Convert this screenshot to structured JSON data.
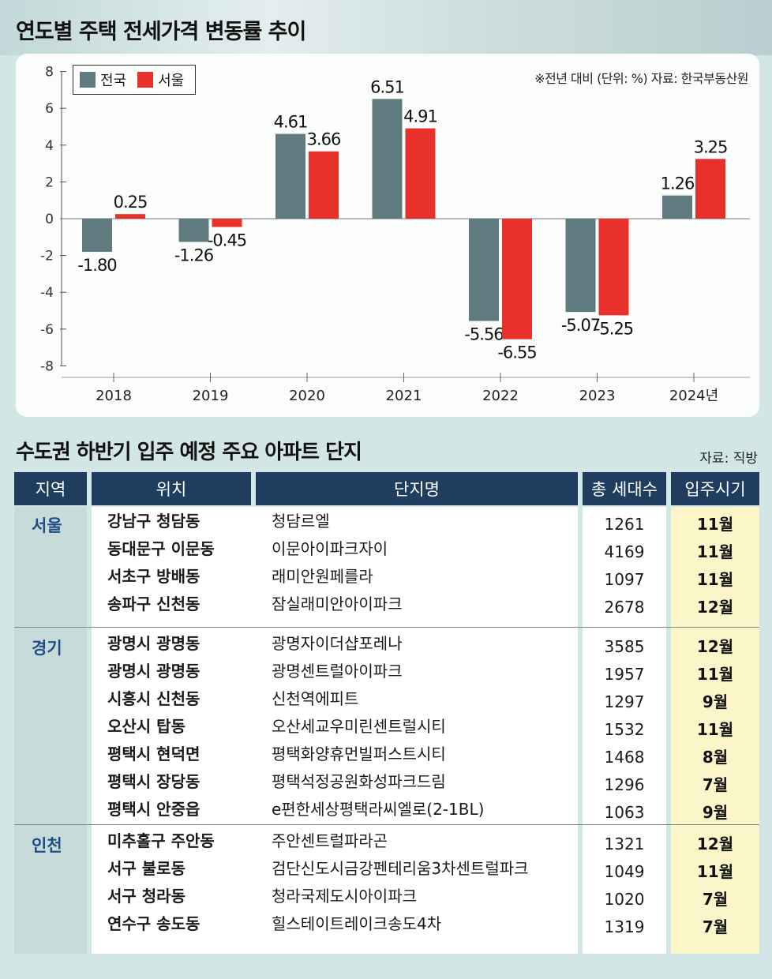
{
  "chart_title": "연도별 주택 전세가격 변동률 추이",
  "source_note": "※전년 대비 (단위: %) 자료: 한국부동산원",
  "colors": {
    "national": "#5f7b80",
    "seoul": "#e8312a",
    "header_bg": "#1f3d5e",
    "region_col": "#c7dbdb",
    "month_col": "#fbf6c9"
  },
  "chart_data": {
    "type": "bar",
    "title": "연도별 주택 전세가격 변동률 추이",
    "categories": [
      "2018",
      "2019",
      "2020",
      "2021",
      "2022",
      "2023",
      "2024년"
    ],
    "series": [
      {
        "name": "전국",
        "values": [
          -1.8,
          -1.26,
          4.61,
          6.51,
          -5.56,
          -5.07,
          1.26
        ],
        "labels": [
          "-1.80",
          "-1.26",
          "4.61",
          "6.51",
          "-5.56",
          "-5.07",
          "1.26"
        ]
      },
      {
        "name": "서울",
        "values": [
          0.25,
          -0.45,
          3.66,
          4.91,
          -6.55,
          -5.25,
          3.25
        ],
        "labels": [
          "0.25",
          "-0.45",
          "3.66",
          "4.91",
          "-6.55",
          "-5.25",
          "3.25"
        ]
      }
    ],
    "yticks": [
      "8",
      "6",
      "4",
      "2",
      "0",
      "-2",
      "-4",
      "-6",
      "-8"
    ],
    "ylim": [
      -8,
      8
    ],
    "xlabel": "",
    "ylabel": "",
    "legend": "top-left"
  },
  "table": {
    "title": "수도권 하반기 입주 예정 주요 아파트 단지",
    "source": "자료: 직방",
    "headers": {
      "region": "지역",
      "location": "위치",
      "complex": "단지명",
      "households": "총 세대수",
      "move_in": "입주시기"
    },
    "groups": [
      {
        "region": "서울",
        "rows": [
          {
            "location": "강남구 청담동",
            "complex": "청담르엘",
            "households": "1261",
            "move_in": "11월"
          },
          {
            "location": "동대문구 이문동",
            "complex": "이문아이파크자이",
            "households": "4169",
            "move_in": "11월"
          },
          {
            "location": "서초구 방배동",
            "complex": "래미안원페를라",
            "households": "1097",
            "move_in": "11월"
          },
          {
            "location": "송파구 신천동",
            "complex": "잠실래미안아이파크",
            "households": "2678",
            "move_in": "12월"
          }
        ]
      },
      {
        "region": "경기",
        "rows": [
          {
            "location": "광명시 광명동",
            "complex": "광명자이더샵포레나",
            "households": "3585",
            "move_in": "12월"
          },
          {
            "location": "광명시 광명동",
            "complex": "광명센트럴아이파크",
            "households": "1957",
            "move_in": "11월"
          },
          {
            "location": "시흥시 신천동",
            "complex": "신천역에피트",
            "households": "1297",
            "move_in": "9월"
          },
          {
            "location": "오산시 탑동",
            "complex": "오산세교우미린센트럴시티",
            "households": "1532",
            "move_in": "11월"
          },
          {
            "location": "평택시 현덕면",
            "complex": "평택화양휴먼빌퍼스트시티",
            "households": "1468",
            "move_in": "8월"
          },
          {
            "location": "평택시 장당동",
            "complex": "평택석정공원화성파크드림",
            "households": "1296",
            "move_in": "7월"
          },
          {
            "location": "평택시 안중읍",
            "complex": "e편한세상평택라씨엘로(2-1BL)",
            "households": "1063",
            "move_in": "9월"
          }
        ]
      },
      {
        "region": "인천",
        "rows": [
          {
            "location": "미추홀구 주안동",
            "complex": "주안센트럴파라곤",
            "households": "1321",
            "move_in": "12월"
          },
          {
            "location": "서구 불로동",
            "complex": "검단신도시금강펜테리움3차센트럴파크",
            "households": "1049",
            "move_in": "11월"
          },
          {
            "location": "서구 청라동",
            "complex": "청라국제도시아이파크",
            "households": "1020",
            "move_in": "7월"
          },
          {
            "location": "연수구 송도동",
            "complex": "힐스테이트레이크송도4차",
            "households": "1319",
            "move_in": "7월"
          }
        ]
      }
    ]
  }
}
